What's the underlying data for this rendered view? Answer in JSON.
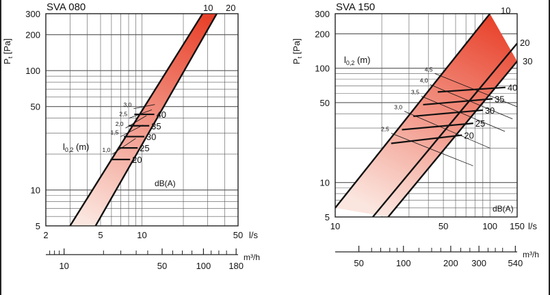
{
  "colors": {
    "band_dark": "#e8412a",
    "band_light": "#fbe6df",
    "grid": "#555555",
    "line": "#111111"
  },
  "chart_data": [
    {
      "type": "line",
      "title": "SVA 080",
      "ylabel_main": "P",
      "ylabel_sub": "t",
      "ylabel_unit": "[Pa]",
      "xlabel": "l/s",
      "xlabel2": "m³/h",
      "xscale": "log",
      "yscale": "log",
      "xlim": [
        2,
        50
      ],
      "ylim": [
        5,
        300
      ],
      "xticks": [
        2,
        5,
        10,
        50
      ],
      "xticks2": [
        10,
        50,
        100,
        180
      ],
      "yticks": [
        5,
        10,
        50,
        100,
        200,
        300
      ],
      "grid": true,
      "band_boundaries": [
        {
          "name": "10",
          "points": [
            [
              3,
              5
            ],
            [
              27.6,
              300
            ]
          ]
        },
        {
          "name": "20",
          "points": [
            [
              4.6,
              5
            ],
            [
              35,
              300
            ]
          ]
        }
      ],
      "dba_lines": [
        {
          "label": "20",
          "points": [
            [
              5.9,
              18
            ],
            [
              8.2,
              18
            ]
          ]
        },
        {
          "label": "25",
          "points": [
            [
              6.7,
              22.5
            ],
            [
              9.3,
              22.5
            ]
          ]
        },
        {
          "label": "30",
          "points": [
            [
              7.4,
              28
            ],
            [
              10.4,
              28
            ]
          ]
        },
        {
          "label": "35",
          "points": [
            [
              8.0,
              34.5
            ],
            [
              11.3,
              34.5
            ]
          ]
        },
        {
          "label": "40",
          "points": [
            [
              8.8,
              43
            ],
            [
              12.3,
              43
            ]
          ]
        }
      ],
      "throw_lines": [
        {
          "label": "1,0",
          "points": [
            [
              6.1,
              20
            ],
            [
              9.0,
              27
            ]
          ]
        },
        {
          "label": "1,5",
          "points": [
            [
              7.0,
              28
            ],
            [
              10.2,
              35
            ]
          ]
        },
        {
          "label": "2,0",
          "points": [
            [
              7.6,
              33
            ],
            [
              10.8,
              42
            ]
          ]
        },
        {
          "label": "2,5",
          "points": [
            [
              8.1,
              40
            ],
            [
              11.8,
              47
            ]
          ]
        },
        {
          "label": "3,0",
          "points": [
            [
              8.7,
              48
            ],
            [
              12.4,
              52
            ]
          ]
        }
      ],
      "annotations": {
        "throw_label": "l",
        "throw_sub": "0,2",
        "throw_unit": "(m)",
        "dba": "dB(A)"
      }
    },
    {
      "type": "line",
      "title": "SVA 150",
      "ylabel_main": "P",
      "ylabel_sub": "t",
      "ylabel_unit": "[Pa]",
      "xlabel": "l/s",
      "xlabel2": "m³/h",
      "xscale": "log",
      "yscale": "log",
      "xlim": [
        10,
        150
      ],
      "ylim": [
        5,
        300
      ],
      "xticks": [
        10,
        50,
        100,
        150
      ],
      "xticks2": [
        50,
        100,
        200,
        300,
        540
      ],
      "yticks": [
        5,
        10,
        50,
        100,
        200,
        300
      ],
      "grid": true,
      "band_boundaries": [
        {
          "name": "10",
          "points": [
            [
              10,
              6
            ],
            [
              100,
              300
            ]
          ]
        },
        {
          "name": "20",
          "points": [
            [
              17.5,
              5
            ],
            [
              150,
              165
            ]
          ]
        },
        {
          "name": "30",
          "points": [
            [
              22,
              5
            ],
            [
              150,
              115
            ]
          ]
        }
      ],
      "dba_lines": [
        {
          "label": "20",
          "points": [
            [
              23,
              22
            ],
            [
              66,
              26
            ]
          ]
        },
        {
          "label": "25",
          "points": [
            [
              27,
              29
            ],
            [
              78,
              33
            ]
          ]
        },
        {
          "label": "30",
          "points": [
            [
              32,
              38
            ],
            [
              90,
              43
            ]
          ]
        },
        {
          "label": "35",
          "points": [
            [
              37,
              48
            ],
            [
              104,
              54
            ]
          ]
        },
        {
          "label": "40",
          "points": [
            [
              46,
              62
            ],
            [
              126,
              68
            ]
          ]
        }
      ],
      "throw_lines": [
        {
          "label": "2,5",
          "points": [
            [
              23,
              27
            ],
            [
              78,
              14
            ]
          ]
        },
        {
          "label": "3,0",
          "points": [
            [
              28,
              42
            ],
            [
              100,
              20
            ]
          ]
        },
        {
          "label": "3,5",
          "points": [
            [
              36,
              57
            ],
            [
              125,
              28
            ]
          ]
        },
        {
          "label": "4,0",
          "points": [
            [
              41,
              72
            ],
            [
              140,
              36
            ]
          ]
        },
        {
          "label": "4,5",
          "points": [
            [
              44,
              90
            ],
            [
              150,
              46
            ]
          ]
        }
      ],
      "annotations": {
        "throw_label": "l",
        "throw_sub": "0,2",
        "throw_unit": "(m)",
        "dba": "dB(A)"
      }
    }
  ]
}
